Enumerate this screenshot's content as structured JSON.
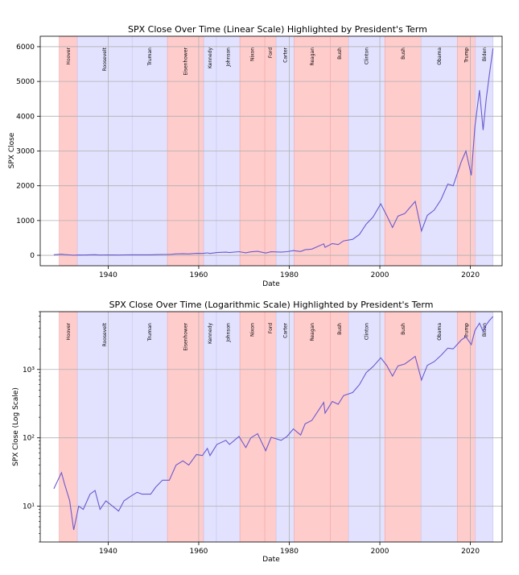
{
  "chart_data": [
    {
      "type": "line",
      "title": "SPX Close Over Time (Linear Scale) Highlighted by President's Term",
      "xlabel": "Date",
      "ylabel": "SPX Close",
      "xlim": [
        1925,
        2027
      ],
      "ylim": [
        -300,
        6300
      ],
      "yscale": "linear",
      "xticks": [
        1940,
        1960,
        1980,
        2000,
        2020
      ],
      "yticks": [
        0,
        1000,
        2000,
        3000,
        4000,
        5000,
        6000
      ],
      "ytick_labels": [
        "0",
        "1000",
        "2000",
        "3000",
        "4000",
        "5000",
        "6000"
      ],
      "grid": true,
      "line_color": "#6a5acd"
    },
    {
      "type": "line",
      "title": "SPX Close Over Time (Logarithmic Scale) Highlighted by President's Term",
      "xlabel": "Date",
      "ylabel": "SPX Close (Log Scale)",
      "xlim": [
        1925,
        2027
      ],
      "ylim": [
        3.0,
        7000
      ],
      "yscale": "log",
      "xticks": [
        1940,
        1960,
        1980,
        2000,
        2020
      ],
      "yticks": [
        10,
        100,
        1000
      ],
      "ytick_labels": [
        "10¹",
        "10²",
        "10³"
      ],
      "grid": true,
      "line_color": "#6a5acd"
    }
  ],
  "presidents": [
    {
      "name": "Hoover",
      "start": 1929.2,
      "end": 1933.2,
      "party": "R"
    },
    {
      "name": "Roosevelt",
      "start": 1933.2,
      "end": 1945.3,
      "party": "D"
    },
    {
      "name": "Truman",
      "start": 1945.3,
      "end": 1953.1,
      "party": "D"
    },
    {
      "name": "Eisenhower",
      "start": 1953.1,
      "end": 1961.1,
      "party": "R"
    },
    {
      "name": "Kennedy",
      "start": 1961.1,
      "end": 1963.9,
      "party": "D"
    },
    {
      "name": "Johnson",
      "start": 1963.9,
      "end": 1969.1,
      "party": "D"
    },
    {
      "name": "Nixon",
      "start": 1969.1,
      "end": 1974.6,
      "party": "R"
    },
    {
      "name": "Ford",
      "start": 1974.6,
      "end": 1977.1,
      "party": "R"
    },
    {
      "name": "Carter",
      "start": 1977.1,
      "end": 1981.1,
      "party": "D"
    },
    {
      "name": "Reagan",
      "start": 1981.1,
      "end": 1989.1,
      "party": "R"
    },
    {
      "name": "Bush",
      "start": 1989.1,
      "end": 1993.1,
      "party": "R"
    },
    {
      "name": "Clinton",
      "start": 1993.1,
      "end": 2001.1,
      "party": "D"
    },
    {
      "name": "Bush",
      "start": 2001.1,
      "end": 2009.1,
      "party": "R"
    },
    {
      "name": "Obama",
      "start": 2009.1,
      "end": 2017.1,
      "party": "D"
    },
    {
      "name": "Trump",
      "start": 2017.1,
      "end": 2021.1,
      "party": "R"
    },
    {
      "name": "Biden",
      "start": 2021.1,
      "end": 2025.0,
      "party": "D"
    }
  ],
  "party_colors": {
    "R": "#ffcccc",
    "D": "#e2e2ff"
  },
  "spx_series": {
    "x": [
      1928.0,
      1929.7,
      1930.3,
      1931.5,
      1932.4,
      1933.5,
      1934.5,
      1936.0,
      1937.1,
      1938.2,
      1939.5,
      1941.0,
      1942.3,
      1943.5,
      1945.0,
      1946.4,
      1947.5,
      1949.4,
      1950.5,
      1952.0,
      1953.5,
      1955.0,
      1956.5,
      1957.8,
      1959.5,
      1960.8,
      1961.9,
      1962.5,
      1964.0,
      1966.0,
      1966.8,
      1968.9,
      1970.4,
      1971.5,
      1973.0,
      1974.8,
      1976.0,
      1978.2,
      1979.5,
      1980.9,
      1982.5,
      1983.5,
      1985.0,
      1987.6,
      1987.9,
      1989.5,
      1990.8,
      1992.0,
      1994.0,
      1995.5,
      1997.0,
      1998.5,
      2000.2,
      2001.5,
      2002.8,
      2004.0,
      2005.5,
      2007.8,
      2009.2,
      2010.5,
      2012.0,
      2013.5,
      2015.0,
      2016.2,
      2018.0,
      2019.0,
      2020.2,
      2021.0,
      2022.0,
      2022.8,
      2023.5,
      2024.2,
      2025.0
    ],
    "y": [
      18,
      31,
      22,
      12,
      4.5,
      10,
      9,
      15,
      17,
      9,
      12,
      10,
      8.5,
      12,
      14,
      16,
      15,
      15,
      19,
      24,
      24,
      40,
      46,
      40,
      57,
      55,
      70,
      55,
      80,
      92,
      80,
      105,
      72,
      100,
      115,
      65,
      102,
      92,
      105,
      135,
      110,
      160,
      180,
      330,
      230,
      340,
      310,
      415,
      460,
      600,
      900,
      1100,
      1480,
      1150,
      800,
      1130,
      1200,
      1550,
      700,
      1150,
      1300,
      1600,
      2050,
      2000,
      2700,
      3000,
      2300,
      3700,
      4750,
      3600,
      4500,
      5200,
      5950
    ]
  }
}
